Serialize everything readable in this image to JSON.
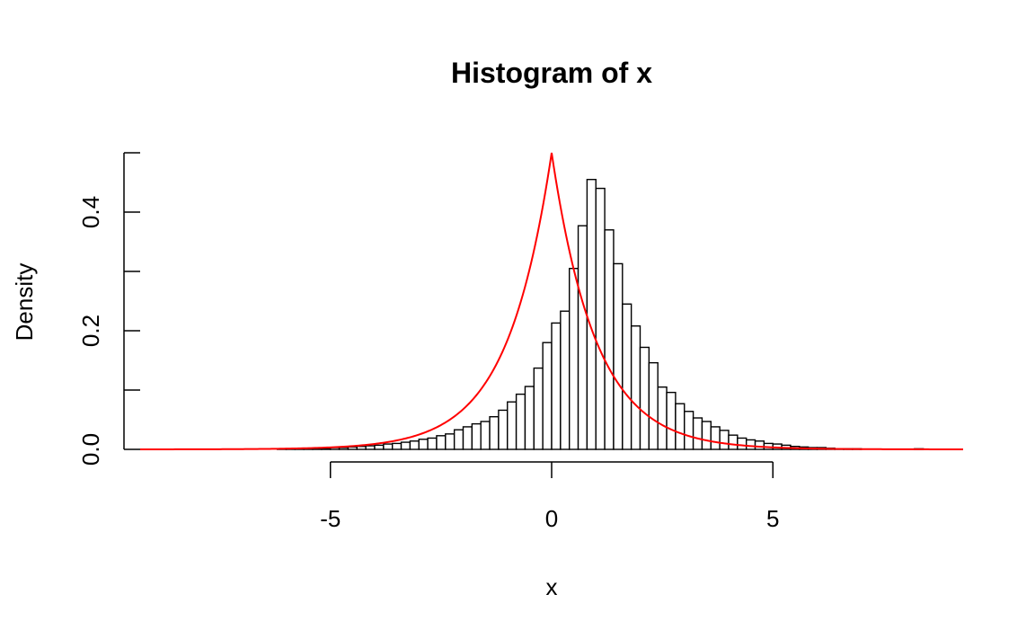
{
  "chart_data": {
    "type": "bar",
    "title": "Histogram of x",
    "xlabel": "x",
    "ylabel": "Density",
    "xlim": [
      -9.3,
      9.3
    ],
    "ylim": [
      0,
      0.5
    ],
    "bin_width": 0.2,
    "x_ticks": [
      -5,
      0,
      5
    ],
    "x_tick_labels": [
      "-5",
      "0",
      "5"
    ],
    "x_axis_range": [
      -5,
      5
    ],
    "y_ticks": [
      0,
      0.1,
      0.2,
      0.3,
      0.4,
      0.5
    ],
    "y_tick_labels": [
      "0.0",
      "",
      "0.2",
      "",
      "0.4",
      ""
    ],
    "bin_edges_start": -6.2,
    "values": [
      0.001,
      0.001,
      0.001,
      0.002,
      0.002,
      0.002,
      0.003,
      0.003,
      0.004,
      0.005,
      0.006,
      0.007,
      0.009,
      0.01,
      0.012,
      0.014,
      0.017,
      0.019,
      0.023,
      0.026,
      0.033,
      0.038,
      0.043,
      0.047,
      0.055,
      0.066,
      0.08,
      0.093,
      0.106,
      0.137,
      0.18,
      0.213,
      0.233,
      0.305,
      0.377,
      0.455,
      0.44,
      0.37,
      0.313,
      0.245,
      0.208,
      0.172,
      0.146,
      0.105,
      0.096,
      0.077,
      0.064,
      0.053,
      0.047,
      0.038,
      0.032,
      0.024,
      0.019,
      0.016,
      0.014,
      0.01,
      0.009,
      0.007,
      0.005,
      0.004,
      0.003,
      0.003,
      0.002,
      0.001,
      0.001,
      0.001
    ],
    "outlier_bins": [
      {
        "x": 8.2,
        "value": 0.001
      }
    ],
    "series": [
      {
        "kind": "density-curve",
        "color": "#ff0000",
        "x_range": [
          -9.3,
          9.3
        ],
        "peak": 0.5,
        "scale": 1
      }
    ],
    "grid": false
  }
}
